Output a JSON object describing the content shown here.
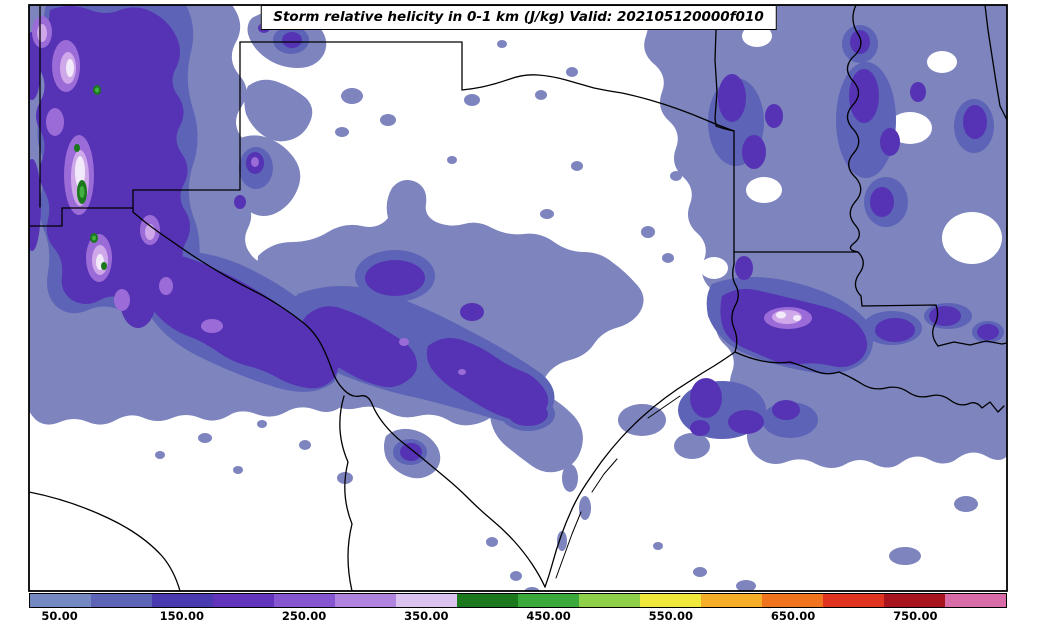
{
  "title": {
    "text": "Storm relative helicity in 0-1 km (J/kg) Valid: 202105120000f010"
  },
  "chart_data": {
    "type": "heatmap",
    "title": "Storm relative helicity in 0-1 km (J/kg) Valid: 202105120000f010",
    "field": "Storm relative helicity",
    "layer_depth": "0-1 km",
    "units": "J/kg",
    "valid_time": "202105120000f010",
    "region": "South-central United States and northern Mexico (New Mexico, Texas, Oklahoma, Arkansas, Louisiana, Mississippi, Gulf coast)",
    "boundaries_shown": [
      "Texas",
      "Oklahoma",
      "New Mexico",
      "Arkansas",
      "Louisiana",
      "Mississippi",
      "Mexico",
      "Gulf of Mexico coastline"
    ],
    "colorbar": {
      "orientation": "horizontal",
      "tick_labels": [
        "50.00",
        "150.00",
        "250.00",
        "350.00",
        "450.00",
        "550.00",
        "650.00",
        "750.00"
      ],
      "tick_values": [
        50,
        150,
        250,
        350,
        450,
        550,
        650,
        750
      ],
      "tick_step": 100,
      "segment_colors": [
        "#7489c2",
        "#5d64b6",
        "#4a3ab0",
        "#6234bc",
        "#8656d0",
        "#b084de",
        "#dcc2ee",
        "#1c781c",
        "#3aa83a",
        "#8fd04a",
        "#f0e83a",
        "#f6ae28",
        "#f0741e",
        "#e03420",
        "#a8141e",
        "#d86ca8"
      ]
    },
    "field_levels": [
      {
        "name": "srh-low-50",
        "color": "#7d84be"
      },
      {
        "name": "srh-100",
        "color": "#5d63b6"
      },
      {
        "name": "srh-200",
        "color": "#5533b4"
      },
      {
        "name": "srh-250",
        "color": "#9b6bd8"
      },
      {
        "name": "srh-300",
        "color": "#cfa8ea"
      },
      {
        "name": "srh-330-near-white",
        "color": "#f2eafa"
      },
      {
        "name": "srh-375-dark-green",
        "color": "#1c781c"
      },
      {
        "name": "srh-425-green",
        "color": "#44b044"
      }
    ],
    "map_colors": {
      "background": "#ffffff",
      "boundaries": "#000000",
      "frame": "#000000"
    }
  }
}
